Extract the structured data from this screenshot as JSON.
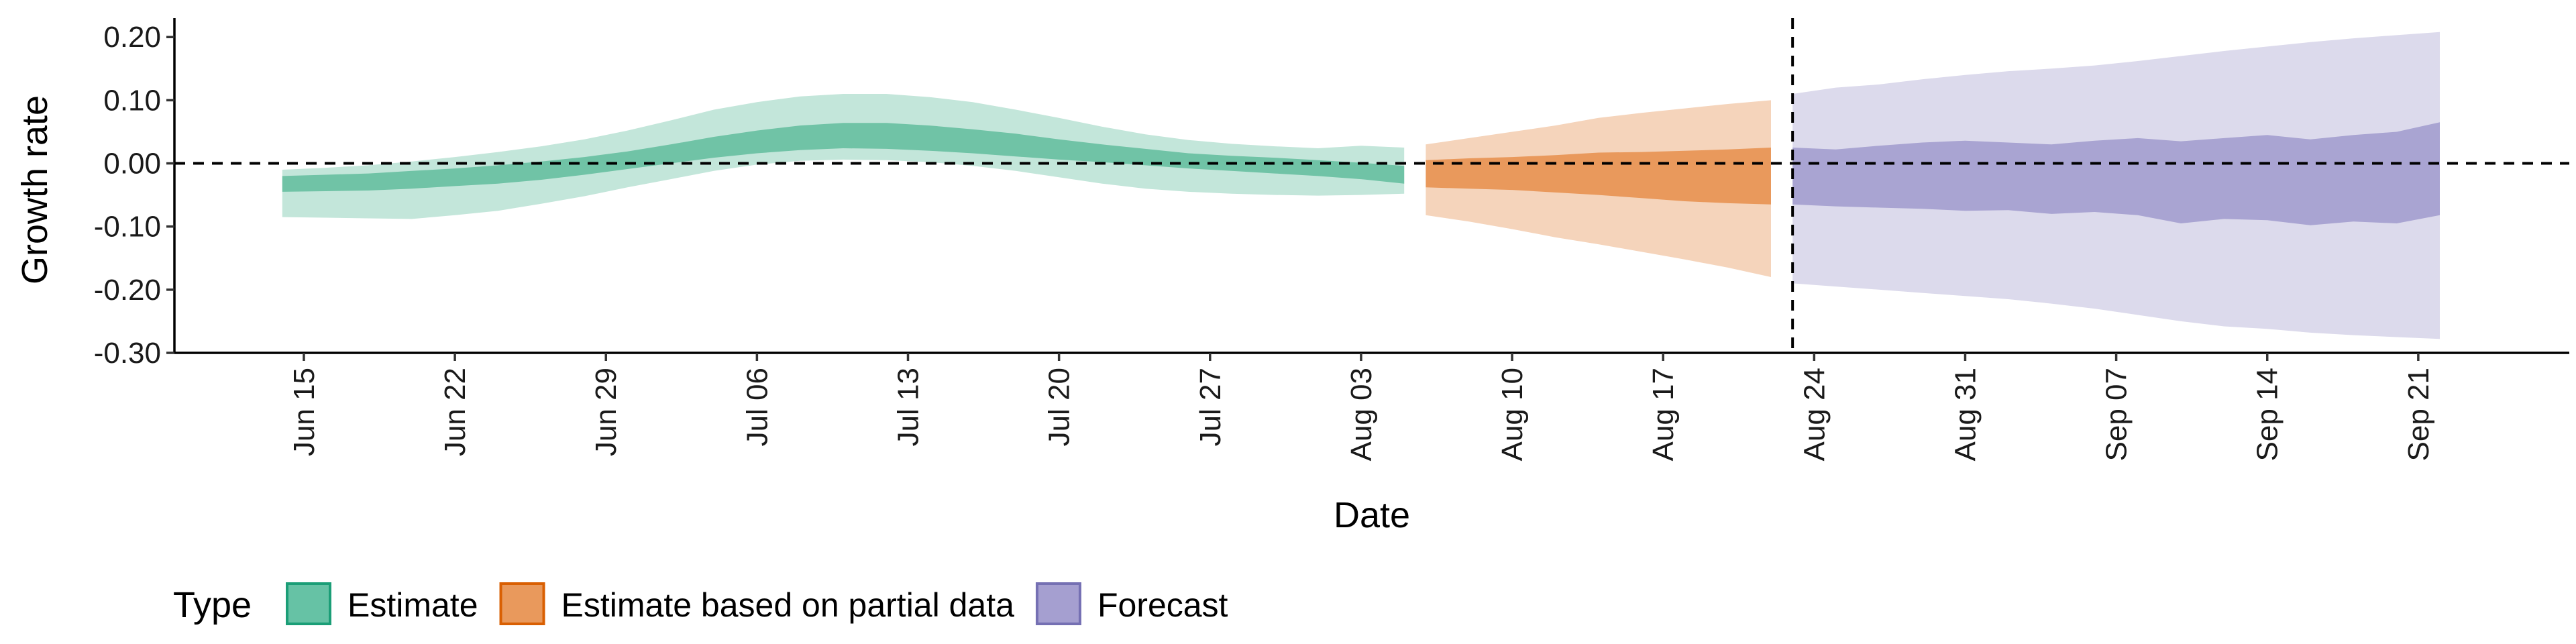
{
  "chart_data": {
    "type": "area",
    "xlabel": "Date",
    "ylabel": "Growth rate",
    "ylim": [
      -0.3,
      0.23
    ],
    "xlim": [
      "2020-06-09",
      "2020-09-28"
    ],
    "y_ticks": [
      {
        "value": 0.2,
        "label": "0.20"
      },
      {
        "value": 0.1,
        "label": "0.10"
      },
      {
        "value": 0.0,
        "label": "0.00"
      },
      {
        "value": -0.1,
        "label": "-0.10"
      },
      {
        "value": -0.2,
        "label": "-0.20"
      },
      {
        "value": -0.3,
        "label": "-0.30"
      }
    ],
    "x_ticks": [
      {
        "date": "2020-06-15",
        "label": "Jun 15"
      },
      {
        "date": "2020-06-22",
        "label": "Jun 22"
      },
      {
        "date": "2020-06-29",
        "label": "Jun 29"
      },
      {
        "date": "2020-07-06",
        "label": "Jul 06"
      },
      {
        "date": "2020-07-13",
        "label": "Jul 13"
      },
      {
        "date": "2020-07-20",
        "label": "Jul 20"
      },
      {
        "date": "2020-07-27",
        "label": "Jul 27"
      },
      {
        "date": "2020-08-03",
        "label": "Aug 03"
      },
      {
        "date": "2020-08-10",
        "label": "Aug 10"
      },
      {
        "date": "2020-08-17",
        "label": "Aug 17"
      },
      {
        "date": "2020-08-24",
        "label": "Aug 24"
      },
      {
        "date": "2020-08-31",
        "label": "Aug 31"
      },
      {
        "date": "2020-09-07",
        "label": "Sep 07"
      },
      {
        "date": "2020-09-14",
        "label": "Sep 14"
      },
      {
        "date": "2020-09-21",
        "label": "Sep 21"
      }
    ],
    "hline": 0,
    "vline": "2020-08-23",
    "grid": false,
    "legend": {
      "title": "Type",
      "position": "bottom-left",
      "items": [
        {
          "key": "estimate",
          "label": "Estimate",
          "fill": "#66c2a5",
          "border": "#1b9e77"
        },
        {
          "key": "partial",
          "label": "Estimate based on partial data",
          "fill": "#e9995c",
          "border": "#d95f02"
        },
        {
          "key": "forecast",
          "label": "Forecast",
          "fill": "#a59fd0",
          "border": "#7570b3"
        }
      ]
    },
    "series": [
      {
        "key": "estimate",
        "outer_color": "#c3e6da",
        "inner_color": "#70c3a6",
        "points": [
          {
            "x": "2020-06-14",
            "lo90": -0.085,
            "lo50": -0.045,
            "hi50": -0.02,
            "hi90": -0.01
          },
          {
            "x": "2020-06-16",
            "lo90": -0.086,
            "lo50": -0.044,
            "hi50": -0.018,
            "hi90": -0.007
          },
          {
            "x": "2020-06-18",
            "lo90": -0.087,
            "lo50": -0.043,
            "hi50": -0.016,
            "hi90": -0.003
          },
          {
            "x": "2020-06-20",
            "lo90": -0.088,
            "lo50": -0.04,
            "hi50": -0.012,
            "hi90": 0.003
          },
          {
            "x": "2020-06-22",
            "lo90": -0.082,
            "lo50": -0.036,
            "hi50": -0.008,
            "hi90": 0.01
          },
          {
            "x": "2020-06-24",
            "lo90": -0.075,
            "lo50": -0.032,
            "hi50": -0.003,
            "hi90": 0.018
          },
          {
            "x": "2020-06-26",
            "lo90": -0.064,
            "lo50": -0.026,
            "hi50": 0.003,
            "hi90": 0.027
          },
          {
            "x": "2020-06-28",
            "lo90": -0.052,
            "lo50": -0.018,
            "hi50": 0.01,
            "hi90": 0.038
          },
          {
            "x": "2020-06-30",
            "lo90": -0.038,
            "lo50": -0.009,
            "hi50": 0.019,
            "hi90": 0.052
          },
          {
            "x": "2020-07-02",
            "lo90": -0.025,
            "lo50": 0.0,
            "hi50": 0.03,
            "hi90": 0.068
          },
          {
            "x": "2020-07-04",
            "lo90": -0.012,
            "lo50": 0.009,
            "hi50": 0.042,
            "hi90": 0.085
          },
          {
            "x": "2020-07-06",
            "lo90": -0.002,
            "lo50": 0.016,
            "hi50": 0.052,
            "hi90": 0.097
          },
          {
            "x": "2020-07-08",
            "lo90": 0.004,
            "lo50": 0.021,
            "hi50": 0.06,
            "hi90": 0.106
          },
          {
            "x": "2020-07-10",
            "lo90": 0.006,
            "lo50": 0.024,
            "hi50": 0.064,
            "hi90": 0.11
          },
          {
            "x": "2020-07-12",
            "lo90": 0.005,
            "lo50": 0.023,
            "hi50": 0.064,
            "hi90": 0.11
          },
          {
            "x": "2020-07-14",
            "lo90": 0.002,
            "lo50": 0.02,
            "hi50": 0.06,
            "hi90": 0.105
          },
          {
            "x": "2020-07-16",
            "lo90": -0.004,
            "lo50": 0.016,
            "hi50": 0.054,
            "hi90": 0.097
          },
          {
            "x": "2020-07-18",
            "lo90": -0.012,
            "lo50": 0.011,
            "hi50": 0.047,
            "hi90": 0.085
          },
          {
            "x": "2020-07-20",
            "lo90": -0.022,
            "lo50": 0.006,
            "hi50": 0.038,
            "hi90": 0.072
          },
          {
            "x": "2020-07-22",
            "lo90": -0.032,
            "lo50": 0.002,
            "hi50": 0.03,
            "hi90": 0.058
          },
          {
            "x": "2020-07-24",
            "lo90": -0.04,
            "lo50": -0.003,
            "hi50": 0.023,
            "hi90": 0.046
          },
          {
            "x": "2020-07-26",
            "lo90": -0.045,
            "lo50": -0.008,
            "hi50": 0.016,
            "hi90": 0.037
          },
          {
            "x": "2020-07-28",
            "lo90": -0.048,
            "lo50": -0.012,
            "hi50": 0.012,
            "hi90": 0.031
          },
          {
            "x": "2020-07-30",
            "lo90": -0.05,
            "lo50": -0.016,
            "hi50": 0.009,
            "hi90": 0.027
          },
          {
            "x": "2020-08-01",
            "lo90": -0.051,
            "lo50": -0.02,
            "hi50": 0.005,
            "hi90": 0.024
          },
          {
            "x": "2020-08-03",
            "lo90": -0.05,
            "lo50": -0.025,
            "hi50": 0.001,
            "hi90": 0.028
          },
          {
            "x": "2020-08-05",
            "lo90": -0.048,
            "lo50": -0.032,
            "hi50": -0.004,
            "hi90": 0.025
          }
        ]
      },
      {
        "key": "partial",
        "outer_color": "#f5d4bb",
        "inner_color": "#e9995c",
        "points": [
          {
            "x": "2020-08-06",
            "lo90": -0.082,
            "lo50": -0.038,
            "hi50": 0.005,
            "hi90": 0.03
          },
          {
            "x": "2020-08-08",
            "lo90": -0.092,
            "lo50": -0.04,
            "hi50": 0.008,
            "hi90": 0.04
          },
          {
            "x": "2020-08-10",
            "lo90": -0.104,
            "lo50": -0.042,
            "hi50": 0.01,
            "hi90": 0.05
          },
          {
            "x": "2020-08-12",
            "lo90": -0.117,
            "lo50": -0.046,
            "hi50": 0.013,
            "hi90": 0.06
          },
          {
            "x": "2020-08-14",
            "lo90": -0.128,
            "lo50": -0.05,
            "hi50": 0.017,
            "hi90": 0.072
          },
          {
            "x": "2020-08-16",
            "lo90": -0.14,
            "lo50": -0.055,
            "hi50": 0.018,
            "hi90": 0.08
          },
          {
            "x": "2020-08-18",
            "lo90": -0.152,
            "lo50": -0.06,
            "hi50": 0.02,
            "hi90": 0.087
          },
          {
            "x": "2020-08-20",
            "lo90": -0.165,
            "lo50": -0.063,
            "hi50": 0.022,
            "hi90": 0.094
          },
          {
            "x": "2020-08-22",
            "lo90": -0.18,
            "lo50": -0.065,
            "hi50": 0.025,
            "hi90": 0.1
          }
        ]
      },
      {
        "key": "forecast",
        "outer_color": "#dcdaec",
        "inner_color": "#a9a4d2",
        "points": [
          {
            "x": "2020-08-23",
            "lo90": -0.19,
            "lo50": -0.065,
            "hi50": 0.025,
            "hi90": 0.11
          },
          {
            "x": "2020-08-25",
            "lo90": -0.195,
            "lo50": -0.068,
            "hi50": 0.022,
            "hi90": 0.12
          },
          {
            "x": "2020-08-27",
            "lo90": -0.2,
            "lo50": -0.07,
            "hi50": 0.028,
            "hi90": 0.125
          },
          {
            "x": "2020-08-29",
            "lo90": -0.205,
            "lo50": -0.072,
            "hi50": 0.033,
            "hi90": 0.133
          },
          {
            "x": "2020-08-31",
            "lo90": -0.21,
            "lo50": -0.075,
            "hi50": 0.036,
            "hi90": 0.14
          },
          {
            "x": "2020-09-02",
            "lo90": -0.215,
            "lo50": -0.074,
            "hi50": 0.033,
            "hi90": 0.146
          },
          {
            "x": "2020-09-04",
            "lo90": -0.222,
            "lo50": -0.08,
            "hi50": 0.03,
            "hi90": 0.15
          },
          {
            "x": "2020-09-06",
            "lo90": -0.23,
            "lo50": -0.077,
            "hi50": 0.036,
            "hi90": 0.155
          },
          {
            "x": "2020-09-08",
            "lo90": -0.24,
            "lo50": -0.082,
            "hi50": 0.04,
            "hi90": 0.162
          },
          {
            "x": "2020-09-10",
            "lo90": -0.25,
            "lo50": -0.095,
            "hi50": 0.035,
            "hi90": 0.17
          },
          {
            "x": "2020-09-12",
            "lo90": -0.258,
            "lo50": -0.088,
            "hi50": 0.04,
            "hi90": 0.178
          },
          {
            "x": "2020-09-14",
            "lo90": -0.262,
            "lo50": -0.09,
            "hi50": 0.045,
            "hi90": 0.185
          },
          {
            "x": "2020-09-16",
            "lo90": -0.268,
            "lo50": -0.098,
            "hi50": 0.038,
            "hi90": 0.192
          },
          {
            "x": "2020-09-18",
            "lo90": -0.272,
            "lo50": -0.092,
            "hi50": 0.045,
            "hi90": 0.198
          },
          {
            "x": "2020-09-20",
            "lo90": -0.275,
            "lo50": -0.095,
            "hi50": 0.05,
            "hi90": 0.203
          },
          {
            "x": "2020-09-22",
            "lo90": -0.278,
            "lo50": -0.082,
            "hi50": 0.065,
            "hi90": 0.208
          }
        ]
      }
    ]
  }
}
